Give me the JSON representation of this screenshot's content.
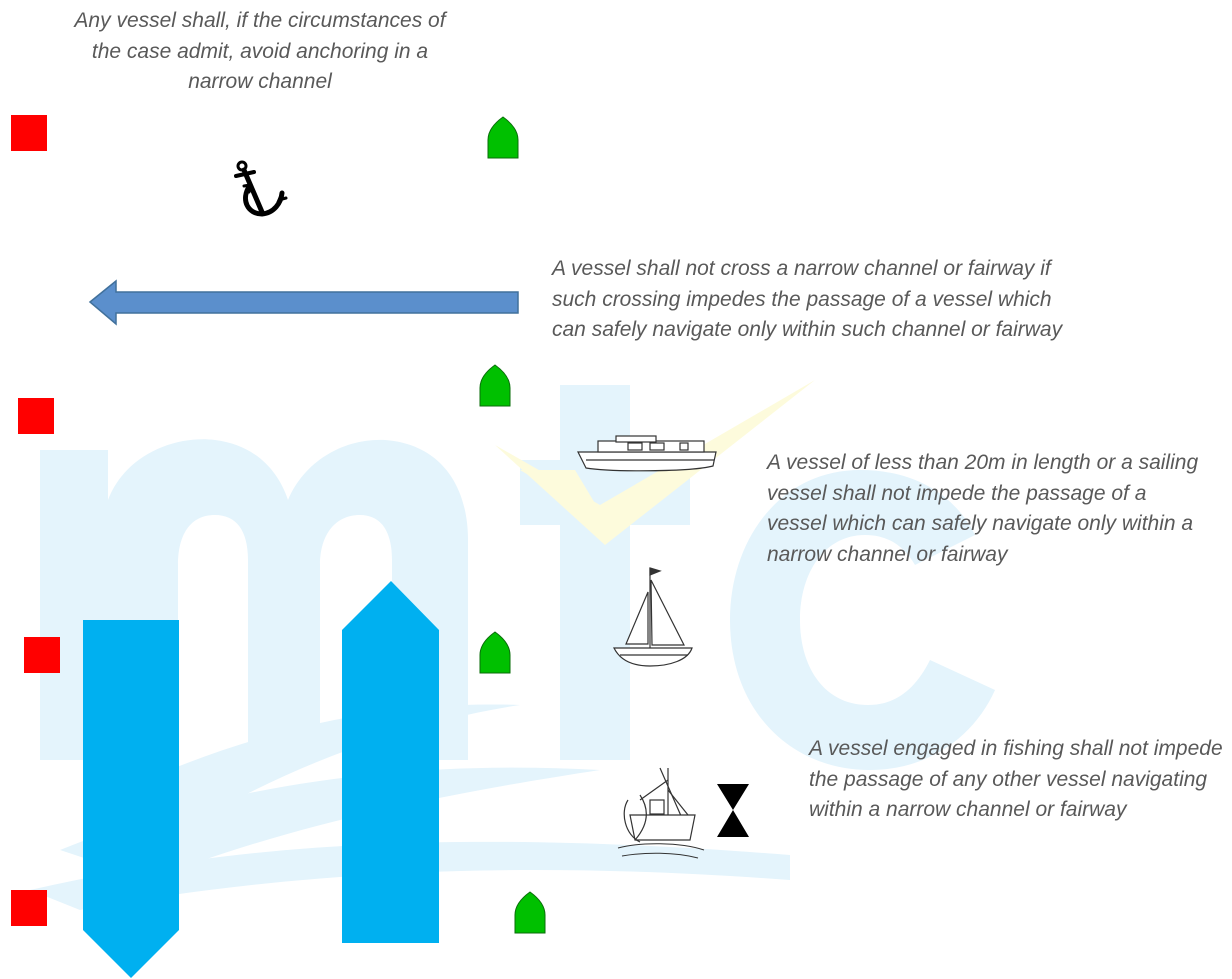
{
  "notes": {
    "anchoring": "Any vessel shall, if the circumstances of the case admit, avoid anchoring in a narrow channel",
    "crossing": "A vessel shall not cross a narrow channel or fairway if such crossing impedes the passage of a vessel which can safely navigate only within such channel or fairway",
    "small_vessel": "A vessel of less than 20m in length or a sailing vessel shall not impede the passage of a vessel which can safely navigate only within a narrow channel or fairway",
    "fishing": "A vessel engaged in fishing shall not impede the passage of any other vessel navigating within a narrow channel or fairway"
  },
  "watermark": {
    "letters": "mtc"
  },
  "icons": [
    "red-can-buoy-icon",
    "green-conical-buoy-icon",
    "anchor-icon",
    "motor-boat-icon",
    "sailing-boat-icon",
    "fishing-vessel-icon",
    "hourglass-day-shape-icon"
  ],
  "colors": {
    "red_buoy": "#ff0000",
    "green_buoy": "#00c000",
    "crossing_arrow": "#5b8fcc",
    "vessel": "#00b0f0",
    "text": "#595959",
    "watermark_blue": "#e4f4fc",
    "watermark_yellow": "#fdfbdc"
  }
}
